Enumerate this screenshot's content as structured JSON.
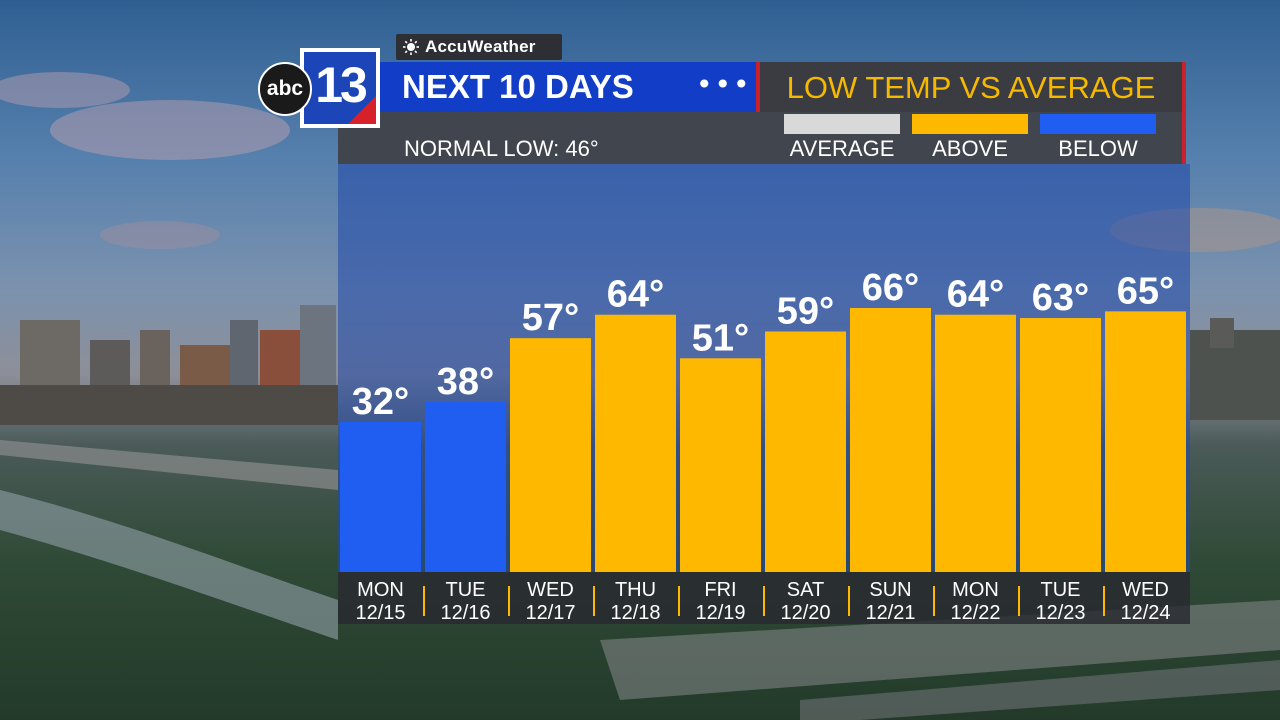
{
  "brand": {
    "weather_provider": "AccuWeather",
    "station_network": "abc",
    "station_number": "13"
  },
  "header": {
    "title": "NEXT 10 DAYS",
    "menu_dots": "•••",
    "subtitle": "LOW TEMP VS AVERAGE",
    "normal_low": "NORMAL LOW:  46°"
  },
  "legend": [
    {
      "label": "AVERAGE",
      "color": "#d9d9d9"
    },
    {
      "label": "ABOVE",
      "color": "#ffb800"
    },
    {
      "label": "BELOW",
      "color": "#1f5ef0"
    }
  ],
  "colors": {
    "above": "#ffb800",
    "below": "#1f5ef0",
    "title_bar": "#123dc7",
    "subtitle_text": "#f7b800",
    "accent_red": "#c8232c"
  },
  "chart_data": {
    "type": "bar",
    "title": "LOW TEMP VS AVERAGE",
    "categories": [
      "MON 12/15",
      "TUE 12/16",
      "WED 12/17",
      "THU 12/18",
      "FRI 12/19",
      "SAT 12/20",
      "SUN 12/21",
      "MON 12/22",
      "TUE 12/23",
      "WED 12/24"
    ],
    "days": [
      "MON",
      "TUE",
      "WED",
      "THU",
      "FRI",
      "SAT",
      "SUN",
      "MON",
      "TUE",
      "WED"
    ],
    "dates": [
      "12/15",
      "12/16",
      "12/17",
      "12/18",
      "12/19",
      "12/20",
      "12/21",
      "12/22",
      "12/23",
      "12/24"
    ],
    "values": [
      32,
      38,
      57,
      64,
      51,
      59,
      66,
      64,
      63,
      65
    ],
    "value_labels": [
      "32°",
      "38°",
      "57°",
      "64°",
      "51°",
      "59°",
      "66°",
      "64°",
      "63°",
      "65°"
    ],
    "status": [
      "below",
      "below",
      "above",
      "above",
      "above",
      "above",
      "above",
      "above",
      "above",
      "above"
    ],
    "normal_low": 46,
    "unit": "°F",
    "grid": false,
    "legend_position": "top"
  }
}
